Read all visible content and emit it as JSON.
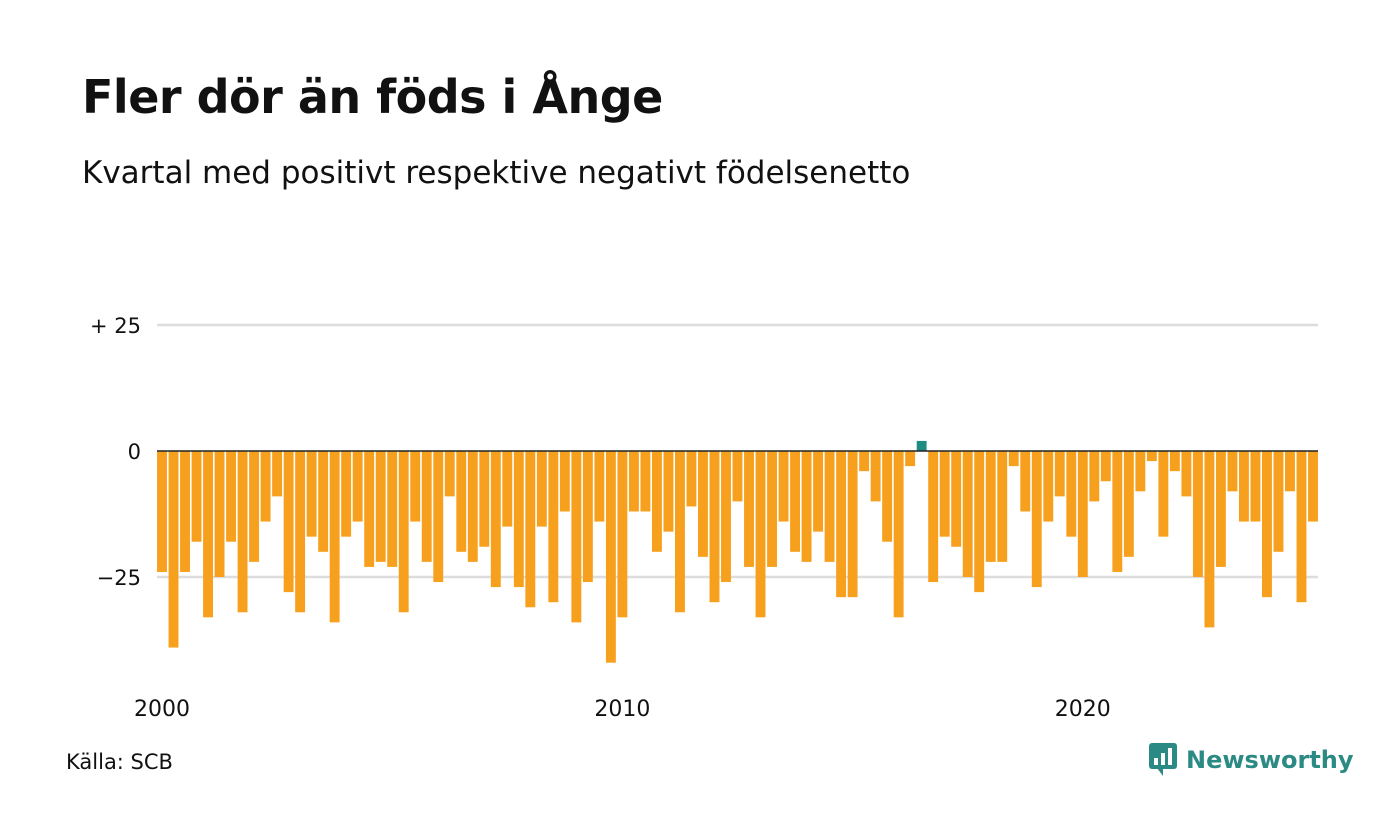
{
  "title": "Fler dör än föds i Ånge",
  "subtitle": "Kvartal med positivt respektive negativt födelsenetto",
  "source": "Källa: SCB",
  "brand": {
    "name": "Newsworthy",
    "color": "#2b8a83",
    "icon": "bar-chart-speech-bubble-icon"
  },
  "colors": {
    "negative": "#f7a01d",
    "positive": "#1f8c82",
    "grid": "#dddddd",
    "zero": "#222222"
  },
  "chart_data": {
    "type": "bar",
    "title": "Fler dör än föds i Ånge",
    "subtitle": "Kvartal med positivt respektive negativt födelsenetto",
    "xlabel": "",
    "ylabel": "",
    "x_start": 2000,
    "periods_per_year": 4,
    "ylim": [
      -45,
      28
    ],
    "yticks": [
      {
        "value": 25,
        "label": "+ 25"
      },
      {
        "value": 0,
        "label": "0"
      },
      {
        "value": -25,
        "label": "−25"
      }
    ],
    "xticks": [
      {
        "value": 2000,
        "label": "2000"
      },
      {
        "value": 2010,
        "label": "2010"
      },
      {
        "value": 2020,
        "label": "2020"
      }
    ],
    "grid": true,
    "values": [
      -24,
      -39,
      -24,
      -18,
      -33,
      -25,
      -18,
      -32,
      -22,
      -14,
      -9,
      -28,
      -32,
      -17,
      -20,
      -34,
      -17,
      -14,
      -23,
      -22,
      -23,
      -32,
      -14,
      -22,
      -26,
      -9,
      -20,
      -22,
      -19,
      -27,
      -15,
      -27,
      -31,
      -15,
      -30,
      -12,
      -34,
      -26,
      -14,
      -42,
      -33,
      -12,
      -12,
      -20,
      -16,
      -32,
      -11,
      -21,
      -30,
      -26,
      -10,
      -23,
      -33,
      -23,
      -14,
      -20,
      -22,
      -16,
      -22,
      -29,
      -29,
      -4,
      -10,
      -18,
      -33,
      -3,
      2,
      -26,
      -17,
      -19,
      -25,
      -28,
      -22,
      -22,
      -3,
      -12,
      -27,
      -14,
      -9,
      -17,
      -25,
      -10,
      -6,
      -24,
      -21,
      -8,
      -2,
      -17,
      -4,
      -9,
      -25,
      -35,
      -23,
      -8,
      -14,
      -14,
      -29,
      -20,
      -8,
      -30,
      -14
    ]
  }
}
